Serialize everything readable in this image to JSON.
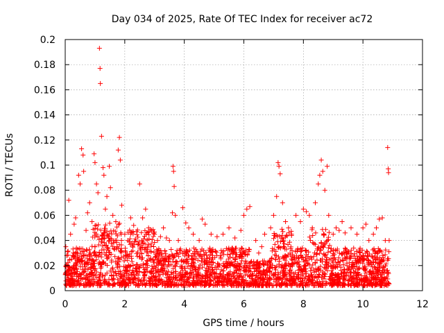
{
  "chart_data": {
    "type": "scatter",
    "title": "Day 034 of 2025, Rate Of TEC Index for receiver ac72",
    "xlabel": "GPS time / hours",
    "ylabel": "ROTI / TECUs",
    "xlim": [
      0,
      12
    ],
    "ylim": [
      0,
      0.2
    ],
    "x_ticks": [
      0,
      2,
      4,
      6,
      8,
      10,
      12
    ],
    "y_ticks": [
      0,
      0.02,
      0.04,
      0.06,
      0.08,
      0.1,
      0.12,
      0.14,
      0.16,
      0.18,
      0.2
    ],
    "grid": true,
    "marker": "+",
    "series_color": "#ff0000",
    "x_tick_labels": [
      "0",
      "2",
      "4",
      "6",
      "8",
      "10",
      "12"
    ],
    "y_tick_labels": [
      "0",
      "0.02",
      "0.04",
      "0.06",
      "0.08",
      "0.1",
      "0.12",
      "0.14",
      "0.16",
      "0.18",
      "0.2"
    ],
    "series": [
      {
        "name": "ROTI",
        "points": [
          [
            0.02,
            0.035
          ],
          [
            0.05,
            0.028
          ],
          [
            0.08,
            0.031
          ],
          [
            0.12,
            0.072
          ],
          [
            0.18,
            0.045
          ],
          [
            0.22,
            0.025
          ],
          [
            0.3,
            0.053
          ],
          [
            0.35,
            0.058
          ],
          [
            0.42,
            0.033
          ],
          [
            0.45,
            0.092
          ],
          [
            0.5,
            0.085
          ],
          [
            0.55,
            0.113
          ],
          [
            0.6,
            0.108
          ],
          [
            0.62,
            0.095
          ],
          [
            0.7,
            0.048
          ],
          [
            0.75,
            0.062
          ],
          [
            0.82,
            0.07
          ],
          [
            0.9,
            0.055
          ],
          [
            0.97,
            0.109
          ],
          [
            1.0,
            0.102
          ],
          [
            1.05,
            0.085
          ],
          [
            1.1,
            0.078
          ],
          [
            1.15,
            0.193
          ],
          [
            1.17,
            0.177
          ],
          [
            1.18,
            0.165
          ],
          [
            1.22,
            0.123
          ],
          [
            1.27,
            0.098
          ],
          [
            1.3,
            0.092
          ],
          [
            1.35,
            0.065
          ],
          [
            1.4,
            0.075
          ],
          [
            1.48,
            0.099
          ],
          [
            1.52,
            0.082
          ],
          [
            1.6,
            0.06
          ],
          [
            1.7,
            0.055
          ],
          [
            1.78,
            0.112
          ],
          [
            1.82,
            0.122
          ],
          [
            1.85,
            0.104
          ],
          [
            1.9,
            0.068
          ],
          [
            2.0,
            0.045
          ],
          [
            2.1,
            0.04
          ],
          [
            2.2,
            0.058
          ],
          [
            2.3,
            0.052
          ],
          [
            2.4,
            0.047
          ],
          [
            2.5,
            0.085
          ],
          [
            2.6,
            0.058
          ],
          [
            2.7,
            0.065
          ],
          [
            2.8,
            0.05
          ],
          [
            2.9,
            0.048
          ],
          [
            3.0,
            0.045
          ],
          [
            3.1,
            0.04
          ],
          [
            3.2,
            0.043
          ],
          [
            3.3,
            0.05
          ],
          [
            3.4,
            0.042
          ],
          [
            3.5,
            0.04
          ],
          [
            3.6,
            0.062
          ],
          [
            3.62,
            0.099
          ],
          [
            3.64,
            0.095
          ],
          [
            3.66,
            0.083
          ],
          [
            3.7,
            0.06
          ],
          [
            3.8,
            0.04
          ],
          [
            3.95,
            0.066
          ],
          [
            4.05,
            0.054
          ],
          [
            4.15,
            0.05
          ],
          [
            4.3,
            0.045
          ],
          [
            4.5,
            0.04
          ],
          [
            4.6,
            0.057
          ],
          [
            4.7,
            0.053
          ],
          [
            4.9,
            0.045
          ],
          [
            5.1,
            0.043
          ],
          [
            5.3,
            0.045
          ],
          [
            5.5,
            0.05
          ],
          [
            5.7,
            0.042
          ],
          [
            5.9,
            0.048
          ],
          [
            6.0,
            0.06
          ],
          [
            6.1,
            0.065
          ],
          [
            6.2,
            0.067
          ],
          [
            6.4,
            0.04
          ],
          [
            6.5,
            0.03
          ],
          [
            6.6,
            0.035
          ],
          [
            6.7,
            0.045
          ],
          [
            6.9,
            0.05
          ],
          [
            7.0,
            0.06
          ],
          [
            7.1,
            0.075
          ],
          [
            7.15,
            0.102
          ],
          [
            7.18,
            0.099
          ],
          [
            7.22,
            0.093
          ],
          [
            7.3,
            0.07
          ],
          [
            7.4,
            0.055
          ],
          [
            7.5,
            0.05
          ],
          [
            7.6,
            0.045
          ],
          [
            7.75,
            0.06
          ],
          [
            7.9,
            0.055
          ],
          [
            8.0,
            0.065
          ],
          [
            8.1,
            0.063
          ],
          [
            8.2,
            0.06
          ],
          [
            8.3,
            0.05
          ],
          [
            8.4,
            0.07
          ],
          [
            8.5,
            0.085
          ],
          [
            8.55,
            0.092
          ],
          [
            8.6,
            0.104
          ],
          [
            8.65,
            0.095
          ],
          [
            8.72,
            0.08
          ],
          [
            8.8,
            0.099
          ],
          [
            8.85,
            0.06
          ],
          [
            9.0,
            0.045
          ],
          [
            9.1,
            0.05
          ],
          [
            9.2,
            0.048
          ],
          [
            9.3,
            0.055
          ],
          [
            9.4,
            0.046
          ],
          [
            9.6,
            0.05
          ],
          [
            9.8,
            0.045
          ],
          [
            10.0,
            0.05
          ],
          [
            10.1,
            0.053
          ],
          [
            10.2,
            0.04
          ],
          [
            10.35,
            0.045
          ],
          [
            10.45,
            0.05
          ],
          [
            10.55,
            0.057
          ],
          [
            10.65,
            0.058
          ],
          [
            10.75,
            0.04
          ],
          [
            10.83,
            0.114
          ],
          [
            10.85,
            0.097
          ],
          [
            10.86,
            0.094
          ],
          [
            10.88,
            0.04
          ]
        ]
      }
    ]
  }
}
